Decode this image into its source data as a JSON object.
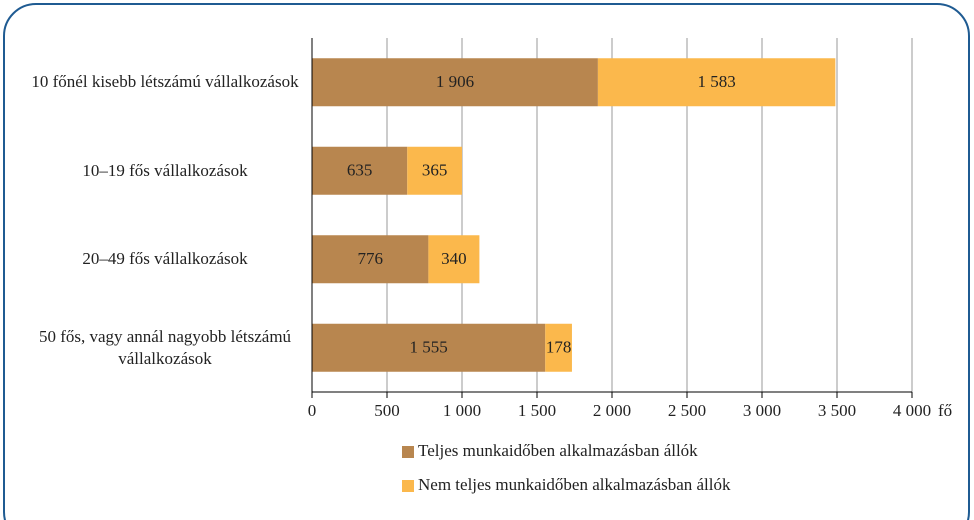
{
  "chart_data": {
    "type": "stacked-bar-horizontal",
    "categories": [
      "10 főnél kisebb létszámú vállalkozások",
      "10–19 fős vállalkozások",
      "20–49 fős vállalkozások",
      "50 fős, vagy annál nagyobb létszámú vállalkozások"
    ],
    "series": [
      {
        "name": "Teljes munkaidőben alkalmazásban állók",
        "color": "#b8864f",
        "values": [
          1906,
          635,
          776,
          1555
        ],
        "value_labels": [
          "1 906",
          "635",
          "776",
          "1 555"
        ]
      },
      {
        "name": "Nem teljes munkaidőben alkalmazásban állók",
        "color": "#fbb84c",
        "values": [
          1583,
          365,
          340,
          178
        ],
        "value_labels": [
          "1 583",
          "365",
          "340",
          "178"
        ]
      }
    ],
    "xlim": [
      0,
      4000
    ],
    "xticks": [
      0,
      500,
      {
        "value": 1000,
        "label": "1 000"
      },
      {
        "value": 1500,
        "label": "1 500"
      },
      {
        "value": 2000,
        "label": "2 000"
      },
      {
        "value": 2500,
        "label": "2 500"
      },
      {
        "value": 3000,
        "label": "3 000"
      },
      {
        "value": 3500,
        "label": "3 500"
      },
      {
        "value": 4000,
        "label": "4 000"
      }
    ],
    "x_unit": "fő",
    "grid": true
  }
}
